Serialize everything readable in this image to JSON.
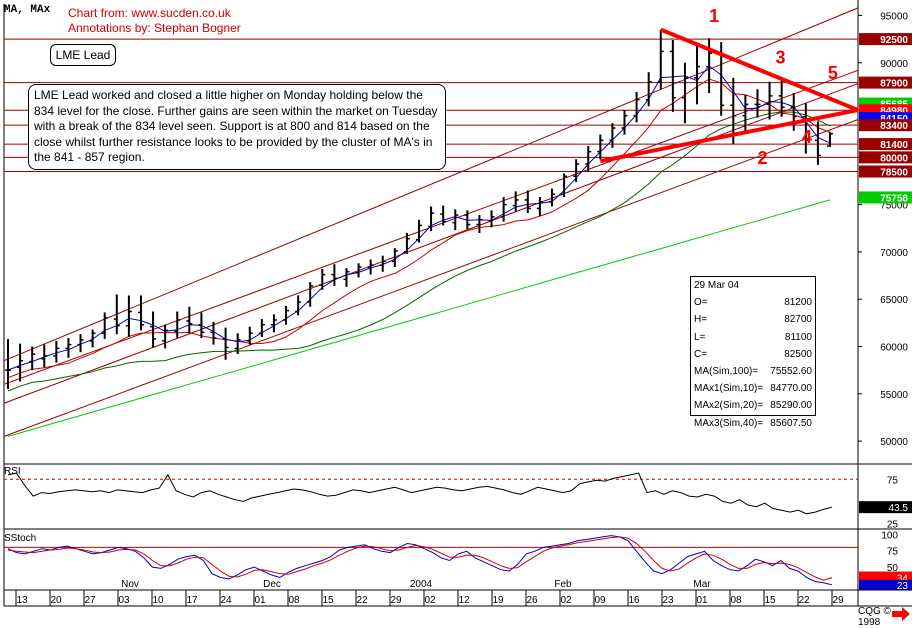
{
  "header": "MA, MAx",
  "source_line": "Chart from: www.sucden.co.uk",
  "annotator_line": "Annotations by: Stephan Bogner",
  "title_box": "LME Lead",
  "commentary": "LME Lead worked and closed a little higher on Monday holding below the 834 level for the close.  Further gains are seen within the market on Tuesday with a break of the 834 level seen.  Support is at 800 and 814 based on the close whilst further resistance looks to be provided by the cluster of MA's in the 841 - 857 region.",
  "ohlc_panel": {
    "date": "29 Mar 04",
    "rows": [
      {
        "label": "O=",
        "value": "81200"
      },
      {
        "label": "H=",
        "value": "82700"
      },
      {
        "label": "L=",
        "value": "81100"
      },
      {
        "label": "C=",
        "value": "82500"
      },
      {
        "label": "MA(Sim,100)=",
        "value": "75552.60"
      },
      {
        "label": "MAx1(Sim,10)=",
        "value": "84770.00"
      },
      {
        "label": "MAx2(Sim,20)=",
        "value": "85290.00"
      },
      {
        "label": "MAx3(Sim,40)=",
        "value": "85607.50"
      }
    ]
  },
  "footer": "CQG © 1998",
  "colors": {
    "price": "#000000",
    "ma100": "#00cc00",
    "ma10": "#0000cc",
    "ma20": "#cc0000",
    "ma40": "#006600",
    "annotation": "#ff0000",
    "channel": "#990000",
    "hline": "#990000"
  },
  "chart_data": [
    {
      "type": "ohlc",
      "title": "LME Lead",
      "ylim": [
        48000,
        96000
      ],
      "y_ticks": [
        50000,
        55000,
        60000,
        65000,
        70000,
        75000,
        80000,
        85000,
        90000,
        95000
      ],
      "x_tick_labels": [
        "13",
        "20",
        "27",
        "03",
        "10",
        "17",
        "24",
        "01",
        "08",
        "15",
        "22",
        "29",
        "02",
        "12",
        "19",
        "26",
        "02",
        "09",
        "16",
        "23",
        "01",
        "08",
        "15",
        "22",
        "29"
      ],
      "month_labels": [
        "Nov",
        "Dec",
        "2004",
        "Feb",
        "Mar"
      ],
      "horizontal_levels": [
        {
          "label": "92500",
          "value": 92500
        },
        {
          "label": "87900",
          "value": 87900
        },
        {
          "label": "85685",
          "value": 85685
        },
        {
          "label": "84980",
          "value": 84980
        },
        {
          "label": "84150",
          "value": 84150
        },
        {
          "label": "83400",
          "value": 83400
        },
        {
          "label": "81400",
          "value": 81400
        },
        {
          "label": "80000",
          "value": 80000
        },
        {
          "label": "78500",
          "value": 78500
        },
        {
          "label": "75758",
          "value": 75758
        }
      ],
      "annotations": [
        "1",
        "2",
        "3",
        "4",
        "5"
      ],
      "series": [
        {
          "name": "Price",
          "values": [
            [
              57500,
              60800,
              55500,
              57500
            ],
            [
              57800,
              60300,
              56300,
              58500
            ],
            [
              58400,
              60000,
              57500,
              59200
            ],
            [
              58700,
              60200,
              57800,
              59000
            ],
            [
              59000,
              60600,
              58300,
              59800
            ],
            [
              59800,
              60900,
              58800,
              60200
            ],
            [
              60200,
              61300,
              59400,
              60700
            ],
            [
              60600,
              61800,
              59900,
              61400
            ],
            [
              61400,
              63600,
              60800,
              63000
            ],
            [
              62900,
              65500,
              61300,
              62200
            ],
            [
              62200,
              65400,
              61000,
              63700
            ],
            [
              63600,
              65400,
              61700,
              62300
            ],
            [
              62100,
              63700,
              59900,
              60800
            ],
            [
              60600,
              62300,
              59800,
              61700
            ],
            [
              61600,
              63700,
              60900,
              62800
            ],
            [
              62700,
              64200,
              61400,
              62400
            ],
            [
              62300,
              63600,
              60900,
              61500
            ],
            [
              61500,
              62600,
              60200,
              60900
            ],
            [
              60800,
              62000,
              58600,
              59900
            ],
            [
              59800,
              61400,
              59200,
              60700
            ],
            [
              60600,
              62100,
              60200,
              61400
            ],
            [
              61400,
              62900,
              61000,
              62300
            ],
            [
              62300,
              63400,
              61500,
              62800
            ],
            [
              62800,
              64300,
              62300,
              63800
            ],
            [
              63700,
              65400,
              63300,
              64700
            ],
            [
              64700,
              66800,
              64200,
              66400
            ],
            [
              66500,
              68200,
              66000,
              67600
            ],
            [
              67600,
              68700,
              66400,
              67200
            ],
            [
              67100,
              68300,
              66300,
              67900
            ],
            [
              67800,
              68800,
              67300,
              68400
            ],
            [
              68400,
              69200,
              67600,
              68600
            ],
            [
              68600,
              69600,
              67900,
              69000
            ],
            [
              69000,
              70400,
              68400,
              70100
            ],
            [
              70000,
              72000,
              69800,
              71400
            ],
            [
              71300,
              73400,
              71000,
              72800
            ],
            [
              72700,
              74800,
              72200,
              74100
            ],
            [
              74000,
              74900,
              72800,
              73200
            ],
            [
              73100,
              74500,
              72300,
              73900
            ],
            [
              73900,
              74400,
              72400,
              72900
            ],
            [
              72900,
              73900,
              72000,
              73400
            ],
            [
              73300,
              74400,
              72600,
              73700
            ],
            [
              73700,
              75800,
              73200,
              75000
            ],
            [
              74900,
              76400,
              74300,
              75500
            ],
            [
              75500,
              76500,
              74100,
              74600
            ],
            [
              74600,
              75800,
              73800,
              75300
            ],
            [
              75300,
              76700,
              74800,
              76100
            ],
            [
              76100,
              78300,
              75800,
              78000
            ],
            [
              78000,
              79800,
              77400,
              79300
            ],
            [
              79300,
              81200,
              78500,
              80600
            ],
            [
              80600,
              82400,
              79800,
              81800
            ],
            [
              81800,
              83600,
              81000,
              83100
            ],
            [
              83100,
              85000,
              82400,
              84400
            ],
            [
              84400,
              86900,
              83700,
              86100
            ],
            [
              86100,
              89000,
              85400,
              88000
            ],
            [
              88000,
              93500,
              87200,
              91200
            ],
            [
              91200,
              92400,
              84800,
              86300
            ],
            [
              86300,
              90000,
              83600,
              88400
            ],
            [
              88400,
              92000,
              85600,
              89600
            ],
            [
              89600,
              92600,
              86800,
              91000
            ],
            [
              91000,
              92200,
              84400,
              85500
            ],
            [
              85500,
              88400,
              81400,
              84400
            ],
            [
              84400,
              86600,
              82800,
              85600
            ],
            [
              85600,
              87200,
              84200,
              85600
            ],
            [
              85600,
              88000,
              84000,
              86500
            ],
            [
              86500,
              88300,
              84300,
              85300
            ],
            [
              85300,
              86800,
              82800,
              84300
            ],
            [
              84300,
              85700,
              80400,
              81800
            ],
            [
              81800,
              83800,
              79200,
              80200
            ],
            [
              81200,
              82700,
              81100,
              82500
            ]
          ]
        },
        {
          "name": "MA(Sim,100)",
          "values": []
        },
        {
          "name": "MAx1(Sim,10)",
          "values": []
        },
        {
          "name": "MAx2(Sim,20)",
          "values": []
        },
        {
          "name": "MAx3(Sim,40)",
          "values": []
        }
      ]
    },
    {
      "type": "line",
      "title": "RSI",
      "ylim": [
        20,
        90
      ],
      "y_ticks": [
        25,
        75
      ],
      "reference_line": 75,
      "last_value": "43.5",
      "series": [
        {
          "name": "RSI",
          "values": [
            80,
            82,
            68,
            56,
            60,
            59,
            61,
            62,
            63,
            62,
            61,
            62,
            60,
            63,
            62,
            61,
            60,
            63,
            65,
            80,
            62,
            58,
            55,
            60,
            62,
            58,
            55,
            52,
            50,
            54,
            56,
            58,
            60,
            62,
            64,
            63,
            61,
            58,
            56,
            57,
            60,
            63,
            62,
            60,
            62,
            64,
            66,
            63,
            60,
            62,
            64,
            66,
            65,
            63,
            62,
            64,
            66,
            67,
            65,
            63,
            60,
            58,
            62,
            66,
            64,
            62,
            60,
            62,
            70,
            72,
            74,
            73,
            76,
            78,
            80,
            82,
            60,
            62,
            58,
            62,
            60,
            56,
            55,
            58,
            56,
            50,
            48,
            52,
            46,
            44,
            48,
            42,
            40,
            38,
            40,
            36,
            38,
            41,
            43.5
          ]
        }
      ]
    },
    {
      "type": "line",
      "title": "SStoch",
      "ylim": [
        15,
        105
      ],
      "y_ticks": [
        25,
        50,
        75,
        100
      ],
      "reference_line": 80,
      "last_values": [
        "34",
        "23"
      ],
      "series": [
        {
          "name": "%K",
          "values": [
            78,
            72,
            70,
            74,
            78,
            76,
            80,
            82,
            78,
            74,
            70,
            72,
            76,
            80,
            78,
            74,
            64,
            50,
            48,
            54,
            62,
            66,
            68,
            60,
            40,
            34,
            32,
            38,
            46,
            50,
            44,
            38,
            34,
            42,
            48,
            52,
            56,
            60,
            66,
            76,
            80,
            82,
            84,
            78,
            74,
            72,
            80,
            86,
            84,
            78,
            72,
            64,
            60,
            70,
            74,
            64,
            58,
            52,
            46,
            44,
            54,
            70,
            74,
            80,
            82,
            84,
            86,
            90,
            92,
            94,
            96,
            98,
            96,
            90,
            74,
            58,
            44,
            40,
            46,
            56,
            66,
            70,
            74,
            60,
            52,
            46,
            44,
            52,
            62,
            58,
            52,
            60,
            48,
            44,
            34,
            28,
            26,
            23
          ]
        },
        {
          "name": "%D",
          "values": [
            76,
            74,
            73,
            72,
            74,
            76,
            77,
            79,
            78,
            76,
            73,
            72,
            73,
            76,
            77,
            76,
            70,
            60,
            52,
            52,
            56,
            62,
            65,
            64,
            54,
            44,
            36,
            35,
            39,
            45,
            46,
            43,
            40,
            39,
            43,
            47,
            52,
            56,
            61,
            68,
            74,
            79,
            82,
            81,
            78,
            75,
            76,
            80,
            83,
            81,
            77,
            71,
            65,
            65,
            68,
            68,
            64,
            58,
            52,
            48,
            49,
            58,
            66,
            74,
            79,
            82,
            84,
            87,
            89,
            91,
            93,
            95,
            96,
            94,
            86,
            74,
            60,
            48,
            44,
            47,
            56,
            64,
            70,
            68,
            62,
            54,
            48,
            48,
            54,
            57,
            55,
            56,
            54,
            49,
            42,
            35,
            30,
            34
          ]
        }
      ]
    }
  ]
}
